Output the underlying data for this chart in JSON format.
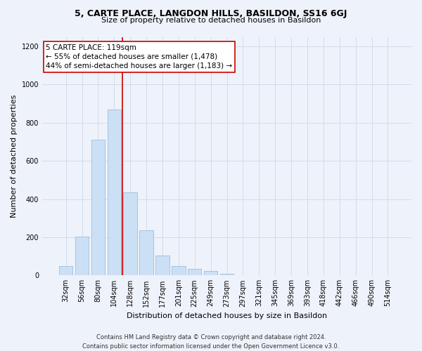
{
  "title_line1": "5, CARTE PLACE, LANGDON HILLS, BASILDON, SS16 6GJ",
  "title_line2": "Size of property relative to detached houses in Basildon",
  "xlabel": "Distribution of detached houses by size in Basildon",
  "ylabel": "Number of detached properties",
  "footer_line1": "Contains HM Land Registry data © Crown copyright and database right 2024.",
  "footer_line2": "Contains public sector information licensed under the Open Government Licence v3.0.",
  "bar_labels": [
    "32sqm",
    "56sqm",
    "80sqm",
    "104sqm",
    "128sqm",
    "152sqm",
    "177sqm",
    "201sqm",
    "225sqm",
    "249sqm",
    "273sqm",
    "297sqm",
    "321sqm",
    "345sqm",
    "369sqm",
    "393sqm",
    "418sqm",
    "442sqm",
    "466sqm",
    "490sqm",
    "514sqm"
  ],
  "bar_values": [
    50,
    205,
    710,
    870,
    435,
    235,
    105,
    48,
    35,
    25,
    10,
    0,
    0,
    0,
    0,
    0,
    0,
    0,
    0,
    0,
    0
  ],
  "bar_color": "#cce0f5",
  "bar_edgecolor": "#9dbedd",
  "grid_color": "#d0d8e8",
  "vline_color": "#cc0000",
  "vline_bin_index": 3,
  "annotation_text": "5 CARTE PLACE: 119sqm\n← 55% of detached houses are smaller (1,478)\n44% of semi-detached houses are larger (1,183) →",
  "annotation_bbox_edgecolor": "#cc0000",
  "annotation_bbox_facecolor": "#ffffff",
  "ylim": [
    0,
    1250
  ],
  "yticks": [
    0,
    200,
    400,
    600,
    800,
    1000,
    1200
  ],
  "background_color": "#eef2fa",
  "title1_fontsize": 9,
  "title2_fontsize": 8,
  "ylabel_fontsize": 8,
  "xlabel_fontsize": 8,
  "tick_fontsize": 7,
  "footer_fontsize": 6
}
